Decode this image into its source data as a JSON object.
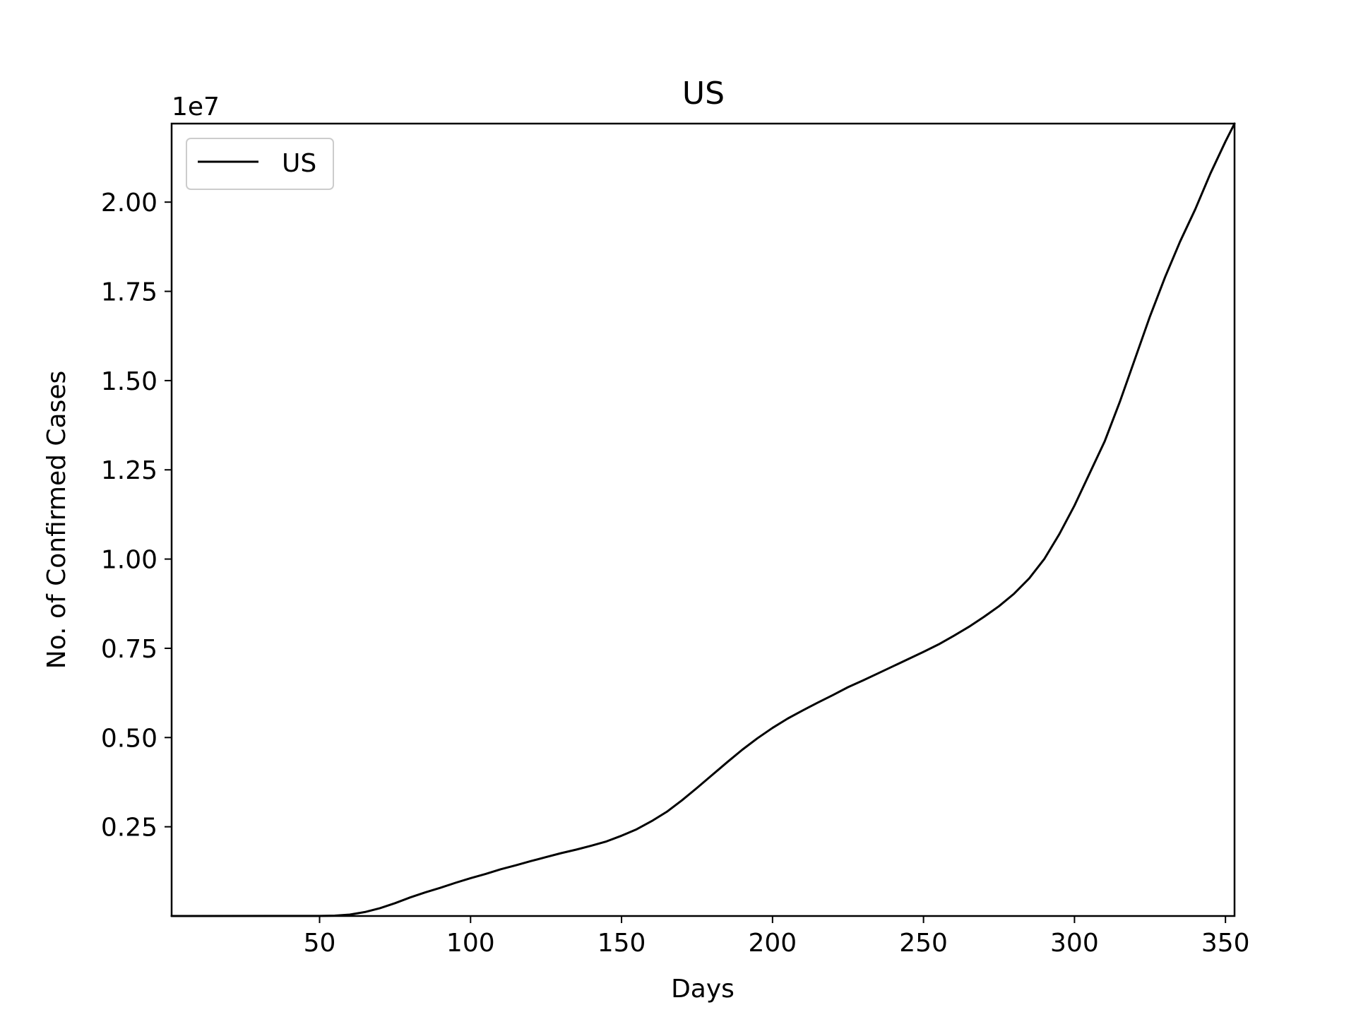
{
  "chart_data": {
    "type": "line",
    "title": "US",
    "xlabel": "Days",
    "ylabel": "No. of Confirmed Cases",
    "y_offset_label": "1e7",
    "y_multiplier": 10000000,
    "xlim": [
      1,
      353
    ],
    "ylim": [
      0,
      2.22
    ],
    "grid": false,
    "legend_position": "top-left",
    "x_ticks": [
      {
        "value": 50,
        "label": "50"
      },
      {
        "value": 100,
        "label": "100"
      },
      {
        "value": 150,
        "label": "150"
      },
      {
        "value": 200,
        "label": "200"
      },
      {
        "value": 250,
        "label": "250"
      },
      {
        "value": 300,
        "label": "300"
      },
      {
        "value": 350,
        "label": "350"
      }
    ],
    "y_ticks": [
      {
        "value": 0.25,
        "label": "0.25"
      },
      {
        "value": 0.5,
        "label": "0.50"
      },
      {
        "value": 0.75,
        "label": "0.75"
      },
      {
        "value": 1.0,
        "label": "1.00"
      },
      {
        "value": 1.25,
        "label": "1.25"
      },
      {
        "value": 1.5,
        "label": "1.50"
      },
      {
        "value": 1.75,
        "label": "1.75"
      },
      {
        "value": 2.0,
        "label": "2.00"
      }
    ],
    "series": [
      {
        "name": "US",
        "color": "#000000",
        "x": [
          1,
          50,
          55,
          60,
          65,
          70,
          75,
          80,
          85,
          90,
          95,
          100,
          105,
          110,
          115,
          120,
          125,
          130,
          135,
          140,
          145,
          150,
          155,
          160,
          165,
          170,
          175,
          180,
          185,
          190,
          195,
          200,
          205,
          210,
          215,
          220,
          225,
          230,
          235,
          240,
          245,
          250,
          255,
          260,
          265,
          270,
          275,
          280,
          285,
          290,
          295,
          300,
          305,
          310,
          315,
          320,
          325,
          330,
          335,
          340,
          345,
          350,
          353
        ],
        "y": [
          0,
          0.0001,
          0.001,
          0.004,
          0.011,
          0.022,
          0.036,
          0.052,
          0.066,
          0.079,
          0.093,
          0.106,
          0.118,
          0.131,
          0.142,
          0.154,
          0.165,
          0.176,
          0.186,
          0.197,
          0.209,
          0.225,
          0.243,
          0.266,
          0.292,
          0.324,
          0.359,
          0.395,
          0.431,
          0.466,
          0.498,
          0.527,
          0.553,
          0.576,
          0.598,
          0.619,
          0.641,
          0.66,
          0.68,
          0.7,
          0.72,
          0.74,
          0.761,
          0.785,
          0.81,
          0.838,
          0.868,
          0.903,
          0.946,
          1.0,
          1.07,
          1.15,
          1.24,
          1.33,
          1.44,
          1.56,
          1.68,
          1.79,
          1.89,
          1.98,
          2.08,
          2.17,
          2.22
        ]
      }
    ]
  }
}
